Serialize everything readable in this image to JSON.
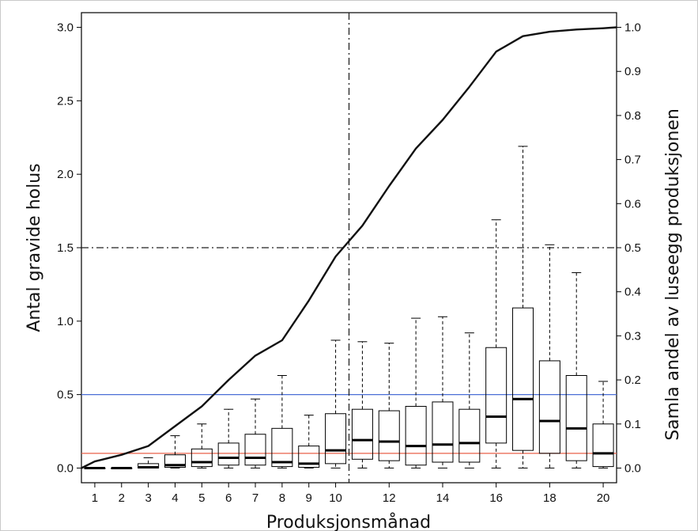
{
  "chart_data": {
    "type": "boxplot-with-line",
    "xlabel": "Produksjonsmånad",
    "ylabel_left": "Antal gravide holus",
    "ylabel_right": "Samla andel av luseegg produksjonen",
    "x_ticks": [
      "1",
      "2",
      "3",
      "4",
      "5",
      "6",
      "7",
      "8",
      "9",
      "10",
      "12",
      "14",
      "16",
      "18",
      "20"
    ],
    "y_left_ticks": [
      "0.0",
      "0.5",
      "1.0",
      "1.5",
      "2.0",
      "2.5",
      "3.0"
    ],
    "y_right_ticks": [
      "0.0",
      "0.1",
      "0.2",
      "0.3",
      "0.4",
      "0.5",
      "0.6",
      "0.7",
      "0.8",
      "0.9",
      "1.0"
    ],
    "xlim": [
      0.5,
      20.5
    ],
    "ylim_left": [
      -0.1,
      3.1
    ],
    "ylim_right": [
      -0.0333,
      1.0333
    ],
    "grid": false,
    "boxes": [
      {
        "month": 1,
        "lower_whisker": 0.0,
        "q1": 0.0,
        "median": 0.0,
        "q3": 0.0,
        "upper_whisker": 0.0
      },
      {
        "month": 2,
        "lower_whisker": 0.0,
        "q1": 0.0,
        "median": 0.0,
        "q3": 0.0,
        "upper_whisker": 0.0
      },
      {
        "month": 3,
        "lower_whisker": 0.0,
        "q1": 0.0,
        "median": 0.005,
        "q3": 0.03,
        "upper_whisker": 0.07
      },
      {
        "month": 4,
        "lower_whisker": 0.0,
        "q1": 0.005,
        "median": 0.02,
        "q3": 0.09,
        "upper_whisker": 0.22
      },
      {
        "month": 5,
        "lower_whisker": 0.0,
        "q1": 0.01,
        "median": 0.04,
        "q3": 0.13,
        "upper_whisker": 0.3
      },
      {
        "month": 6,
        "lower_whisker": 0.0,
        "q1": 0.02,
        "median": 0.07,
        "q3": 0.17,
        "upper_whisker": 0.4
      },
      {
        "month": 7,
        "lower_whisker": 0.0,
        "q1": 0.02,
        "median": 0.07,
        "q3": 0.23,
        "upper_whisker": 0.47
      },
      {
        "month": 8,
        "lower_whisker": 0.0,
        "q1": 0.01,
        "median": 0.04,
        "q3": 0.27,
        "upper_whisker": 0.63
      },
      {
        "month": 9,
        "lower_whisker": 0.0,
        "q1": 0.005,
        "median": 0.03,
        "q3": 0.15,
        "upper_whisker": 0.36
      },
      {
        "month": 10,
        "lower_whisker": 0.0,
        "q1": 0.03,
        "median": 0.12,
        "q3": 0.37,
        "upper_whisker": 0.87
      },
      {
        "month": 11,
        "lower_whisker": 0.0,
        "q1": 0.06,
        "median": 0.19,
        "q3": 0.4,
        "upper_whisker": 0.86
      },
      {
        "month": 12,
        "lower_whisker": 0.0,
        "q1": 0.05,
        "median": 0.18,
        "q3": 0.39,
        "upper_whisker": 0.85
      },
      {
        "month": 13,
        "lower_whisker": 0.0,
        "q1": 0.02,
        "median": 0.15,
        "q3": 0.42,
        "upper_whisker": 1.02
      },
      {
        "month": 14,
        "lower_whisker": 0.0,
        "q1": 0.04,
        "median": 0.16,
        "q3": 0.45,
        "upper_whisker": 1.03
      },
      {
        "month": 15,
        "lower_whisker": 0.0,
        "q1": 0.04,
        "median": 0.17,
        "q3": 0.4,
        "upper_whisker": 0.92
      },
      {
        "month": 16,
        "lower_whisker": 0.0,
        "q1": 0.17,
        "median": 0.35,
        "q3": 0.82,
        "upper_whisker": 1.69
      },
      {
        "month": 17,
        "lower_whisker": 0.0,
        "q1": 0.12,
        "median": 0.47,
        "q3": 1.09,
        "upper_whisker": 2.19
      },
      {
        "month": 18,
        "lower_whisker": 0.0,
        "q1": 0.1,
        "median": 0.32,
        "q3": 0.73,
        "upper_whisker": 1.52
      },
      {
        "month": 19,
        "lower_whisker": 0.0,
        "q1": 0.05,
        "median": 0.27,
        "q3": 0.63,
        "upper_whisker": 1.33
      },
      {
        "month": 20,
        "lower_whisker": 0.0,
        "q1": 0.01,
        "median": 0.1,
        "q3": 0.3,
        "upper_whisker": 0.59
      }
    ],
    "cumulative_line": {
      "axis": "right",
      "x": [
        0.5,
        1,
        2,
        3,
        4,
        5,
        6,
        7,
        8,
        9,
        10,
        11,
        12,
        13,
        14,
        15,
        16,
        17,
        18,
        19,
        20,
        20.5
      ],
      "y": [
        0.0,
        0.015,
        0.03,
        0.05,
        0.095,
        0.14,
        0.2,
        0.255,
        0.29,
        0.38,
        0.48,
        0.55,
        0.64,
        0.725,
        0.79,
        0.865,
        0.945,
        0.98,
        0.99,
        0.995,
        0.998,
        1.0
      ]
    },
    "reference_lines": [
      {
        "orientation": "horizontal",
        "axis": "left",
        "value": 0.5,
        "color": "#4a6fd6",
        "style": "solid"
      },
      {
        "orientation": "horizontal",
        "axis": "left",
        "value": 0.1,
        "color": "#e8604a",
        "style": "solid"
      },
      {
        "orientation": "horizontal",
        "axis": "right",
        "value": 0.5,
        "color": "#222222",
        "style": "dashdot"
      },
      {
        "orientation": "vertical",
        "axis": "x",
        "value": 10.5,
        "color": "#222222",
        "style": "dashdot"
      }
    ]
  }
}
